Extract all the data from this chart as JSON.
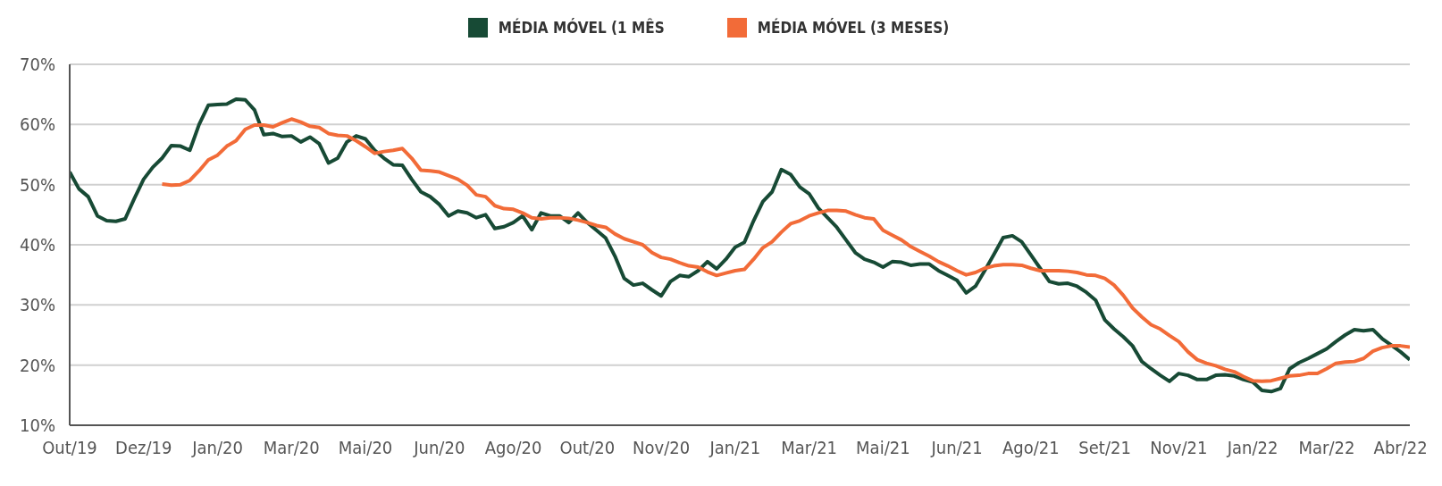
{
  "chart_data": {
    "type": "line",
    "categories": [
      "Out/19",
      null,
      null,
      null,
      null,
      null,
      null,
      null,
      "Dez/19",
      null,
      null,
      null,
      null,
      null,
      null,
      null,
      "Jan/20",
      null,
      null,
      null,
      null,
      null,
      null,
      null,
      "Mar/20",
      null,
      null,
      null,
      null,
      null,
      null,
      null,
      "Mai/20",
      null,
      null,
      null,
      null,
      null,
      null,
      null,
      "Jun/20",
      null,
      null,
      null,
      null,
      null,
      null,
      null,
      "Ago/20",
      null,
      null,
      null,
      null,
      null,
      null,
      null,
      "Out/20",
      null,
      null,
      null,
      null,
      null,
      null,
      null,
      "Nov/20",
      null,
      null,
      null,
      null,
      null,
      null,
      null,
      "Jan/21",
      null,
      null,
      null,
      null,
      null,
      null,
      null,
      "Mar/21",
      null,
      null,
      null,
      null,
      null,
      null,
      null,
      "Mai/21",
      null,
      null,
      null,
      null,
      null,
      null,
      null,
      "Jun/21",
      null,
      null,
      null,
      null,
      null,
      null,
      null,
      "Ago/21",
      null,
      null,
      null,
      null,
      null,
      null,
      null,
      "Set/21",
      null,
      null,
      null,
      null,
      null,
      null,
      null,
      "Nov/21",
      null,
      null,
      null,
      null,
      null,
      null,
      null,
      "Jan/22",
      null,
      null,
      null,
      null,
      null,
      null,
      null,
      "Mar/22",
      null,
      null,
      null,
      null,
      null,
      null,
      null,
      "Abr/22",
      null
    ],
    "series": [
      {
        "name": "MÉDIA MÓVEL (1 MÊS",
        "color": "#174a35",
        "values": [
          52.1,
          49.3,
          48.0,
          44.8,
          44.0,
          43.9,
          44.3,
          47.7,
          50.9,
          52.9,
          54.4,
          56.5,
          56.4,
          55.7,
          60.0,
          63.2,
          63.3,
          63.4,
          64.2,
          64.1,
          62.4,
          58.3,
          58.5,
          58.0,
          58.1,
          57.1,
          57.9,
          56.8,
          53.6,
          54.4,
          57.1,
          58.1,
          57.6,
          55.7,
          54.4,
          53.3,
          53.2,
          50.9,
          48.8,
          48.0,
          46.7,
          44.8,
          45.6,
          45.3,
          44.5,
          45.0,
          42.7,
          43.0,
          43.7,
          44.8,
          42.5,
          45.3,
          44.8,
          44.8,
          43.7,
          45.3,
          43.7,
          42.4,
          41.1,
          38.1,
          34.4,
          33.3,
          33.6,
          32.5,
          31.5,
          33.9,
          34.9,
          34.7,
          35.7,
          37.2,
          36.0,
          37.6,
          39.6,
          40.4,
          44.0,
          47.2,
          48.8,
          52.5,
          51.7,
          49.6,
          48.5,
          46.1,
          44.5,
          42.9,
          40.8,
          38.7,
          37.6,
          37.1,
          36.3,
          37.2,
          37.1,
          36.6,
          36.8,
          36.8,
          35.7,
          34.9,
          34.1,
          32.0,
          33.1,
          35.7,
          38.4,
          41.2,
          41.5,
          40.5,
          38.3,
          36.1,
          33.9,
          33.5,
          33.6,
          33.1,
          32.1,
          30.8,
          27.5,
          26.0,
          24.7,
          23.2,
          20.6,
          19.4,
          18.3,
          17.3,
          18.6,
          18.3,
          17.6,
          17.6,
          18.3,
          18.4,
          18.2,
          17.6,
          17.2,
          15.8,
          15.6,
          16.1,
          19.4,
          20.4,
          21.1,
          21.9,
          22.7,
          23.9,
          25.0,
          25.9,
          25.7,
          25.9,
          24.4,
          23.3,
          22.2,
          20.9
        ]
      },
      {
        "name": "MÉDIA MÓVEL (3 MESES)",
        "color": "#f26b38",
        "values": [
          null,
          null,
          null,
          null,
          null,
          null,
          null,
          null,
          null,
          null,
          50.1,
          49.9,
          50.0,
          50.7,
          52.3,
          54.1,
          54.9,
          56.4,
          57.3,
          59.2,
          59.9,
          59.9,
          59.6,
          60.3,
          60.9,
          60.4,
          59.7,
          59.5,
          58.5,
          58.2,
          58.1,
          57.3,
          56.3,
          55.2,
          55.5,
          55.7,
          56.0,
          54.4,
          52.4,
          52.3,
          52.1,
          51.5,
          50.9,
          49.9,
          48.3,
          48.0,
          46.5,
          46.0,
          45.9,
          45.3,
          44.5,
          44.3,
          44.5,
          44.5,
          44.4,
          44.1,
          43.7,
          43.2,
          42.9,
          41.8,
          41.0,
          40.5,
          40.0,
          38.7,
          37.9,
          37.6,
          37.0,
          36.5,
          36.3,
          35.5,
          34.9,
          35.3,
          35.7,
          35.9,
          37.6,
          39.5,
          40.5,
          42.1,
          43.5,
          44.0,
          44.8,
          45.3,
          45.7,
          45.7,
          45.6,
          45.0,
          44.5,
          44.3,
          42.4,
          41.6,
          40.8,
          39.7,
          38.9,
          38.1,
          37.2,
          36.5,
          35.7,
          35.0,
          35.4,
          36.1,
          36.5,
          36.7,
          36.7,
          36.6,
          36.1,
          35.7,
          35.7,
          35.7,
          35.6,
          35.4,
          35.0,
          34.9,
          34.4,
          33.3,
          31.6,
          29.5,
          28.0,
          26.7,
          26.0,
          24.9,
          23.9,
          22.2,
          20.9,
          20.3,
          19.9,
          19.3,
          18.9,
          18.1,
          17.4,
          17.3,
          17.4,
          17.8,
          18.2,
          18.3,
          18.6,
          18.6,
          19.4,
          20.3,
          20.5,
          20.6,
          21.1,
          22.3,
          22.9,
          23.2,
          23.2,
          23.0
        ]
      }
    ],
    "ylim": [
      10,
      70
    ],
    "yticks": [
      {
        "value": 10,
        "label": "10%"
      },
      {
        "value": 20,
        "label": "20%"
      },
      {
        "value": 30,
        "label": "30%"
      },
      {
        "value": 40,
        "label": "40%"
      },
      {
        "value": 50,
        "label": "50%"
      },
      {
        "value": 60,
        "label": "60%"
      },
      {
        "value": 70,
        "label": "70%"
      }
    ],
    "grid": "y",
    "legend": "top",
    "marker": "none",
    "line_style": "solid"
  }
}
